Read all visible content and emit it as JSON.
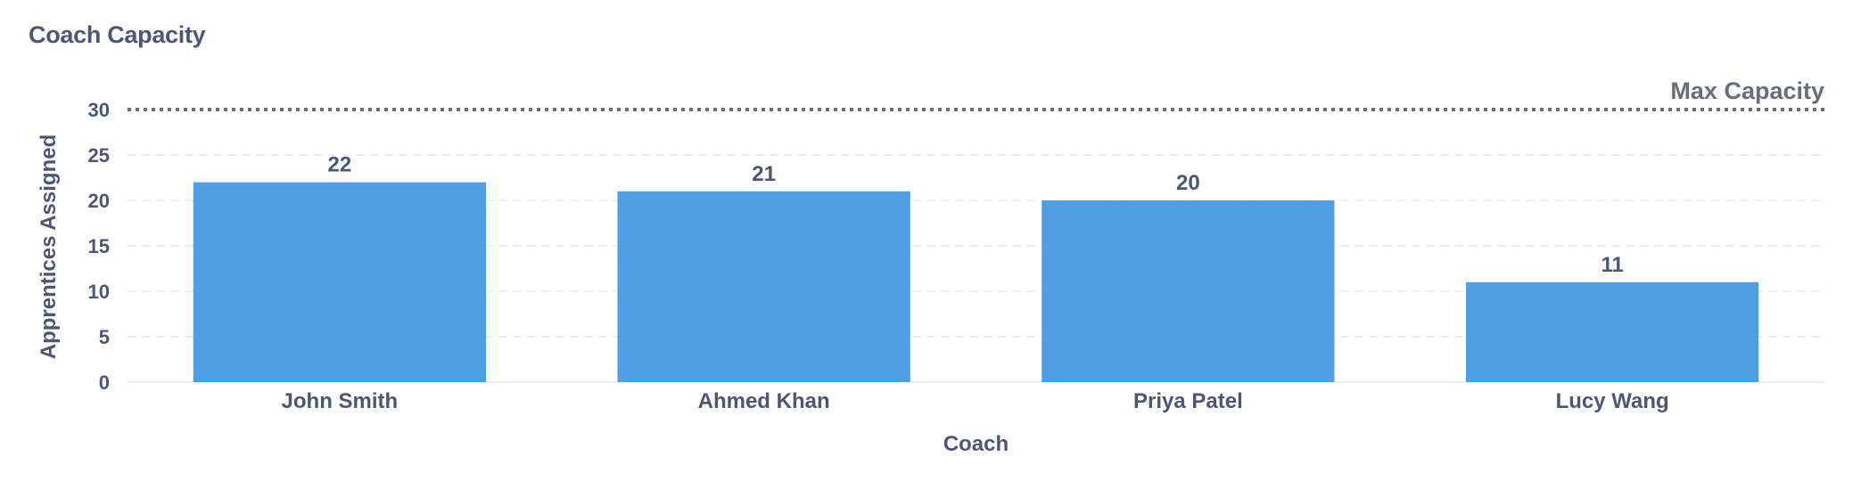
{
  "card": {
    "title": "Coach Capacity"
  },
  "chart_data": {
    "type": "bar",
    "categories": [
      "John Smith",
      "Ahmed Khan",
      "Priya Patel",
      "Lucy Wang"
    ],
    "values": [
      22,
      21,
      20,
      11
    ],
    "xlabel": "Coach",
    "ylabel": "Apprentices Assigned",
    "ylim": [
      0,
      30
    ],
    "yticks": [
      0,
      5,
      10,
      15,
      20,
      25,
      30
    ],
    "grid": true,
    "data_labels": true,
    "goal_line": {
      "value": 30,
      "label": "Max Capacity",
      "style": "dotted"
    },
    "colors": {
      "bar": "#509ee3",
      "text": "#4c5773",
      "goal": "#696e7b",
      "grid": "#eceeef"
    }
  }
}
